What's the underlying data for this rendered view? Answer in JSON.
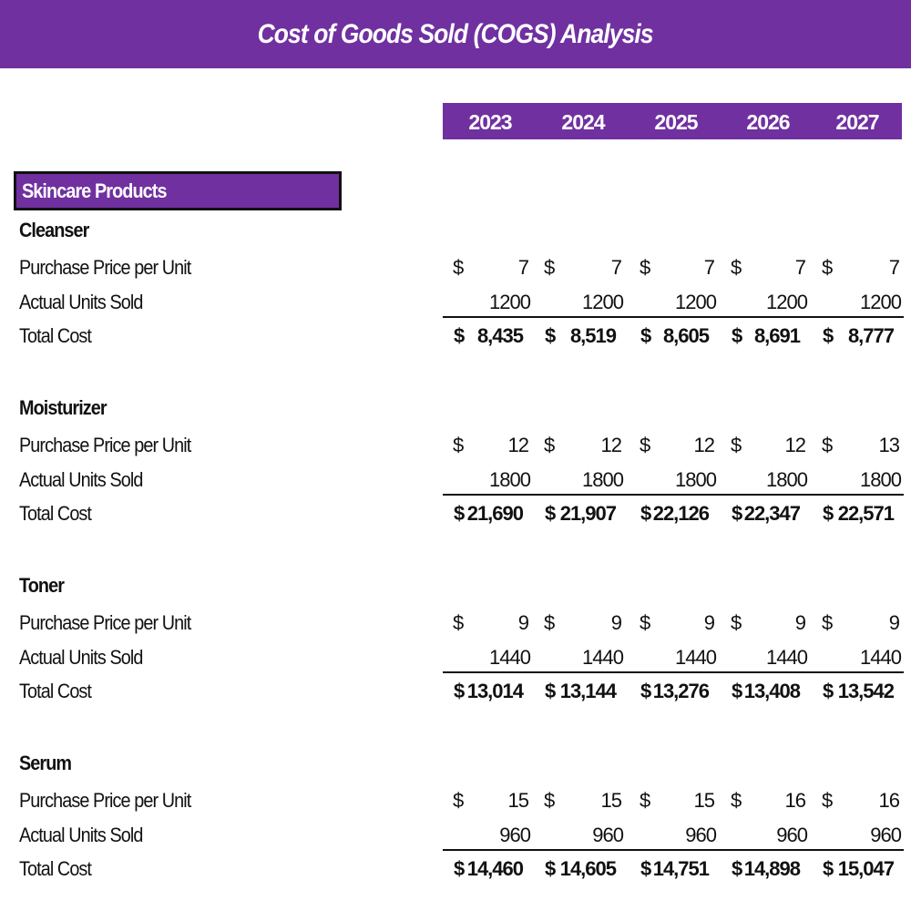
{
  "title": "Cost of Goods Sold (COGS) Analysis",
  "years": [
    "2023",
    "2024",
    "2025",
    "2026",
    "2027"
  ],
  "category": "Skincare Products",
  "row_labels": {
    "price": "Purchase Price per Unit",
    "units": "Actual Units Sold",
    "total": "Total Cost"
  },
  "currency_symbol": "$",
  "accent_color": "#7030A0",
  "products": [
    {
      "name": "Cleanser",
      "price": [
        "7",
        "7",
        "7",
        "7",
        "7"
      ],
      "units": [
        "1200",
        "1200",
        "1200",
        "1200",
        "1200"
      ],
      "total": [
        "8,435",
        "8,519",
        "8,605",
        "8,691",
        "8,777"
      ]
    },
    {
      "name": "Moisturizer",
      "price": [
        "12",
        "12",
        "12",
        "12",
        "13"
      ],
      "units": [
        "1800",
        "1800",
        "1800",
        "1800",
        "1800"
      ],
      "total": [
        "21,690",
        "21,907",
        "22,126",
        "22,347",
        "22,571"
      ]
    },
    {
      "name": "Toner",
      "price": [
        "9",
        "9",
        "9",
        "9",
        "9"
      ],
      "units": [
        "1440",
        "1440",
        "1440",
        "1440",
        "1440"
      ],
      "total": [
        "13,014",
        "13,144",
        "13,276",
        "13,408",
        "13,542"
      ]
    },
    {
      "name": "Serum",
      "price": [
        "15",
        "15",
        "15",
        "16",
        "16"
      ],
      "units": [
        "960",
        "960",
        "960",
        "960",
        "960"
      ],
      "total": [
        "14,460",
        "14,605",
        "14,751",
        "14,898",
        "15,047"
      ]
    }
  ]
}
